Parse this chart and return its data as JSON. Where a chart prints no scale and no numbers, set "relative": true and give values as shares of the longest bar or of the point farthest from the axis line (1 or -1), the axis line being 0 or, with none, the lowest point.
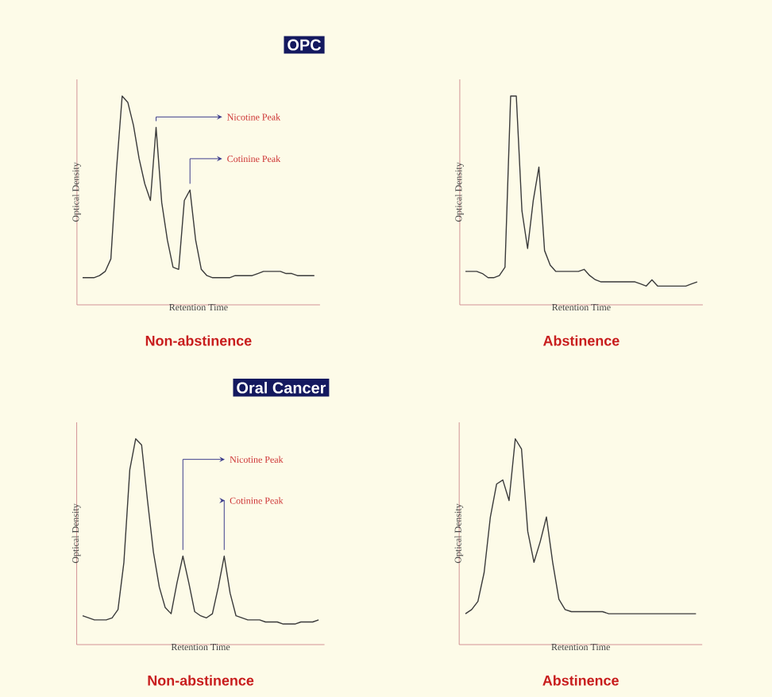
{
  "chart_data": [
    {
      "type": "line",
      "relative": true,
      "title": "OPC",
      "subtitle": "Non-abstinence",
      "xlabel": "Retention Time",
      "ylabel": "Optical Density",
      "color": "#3a3a3a",
      "annotations": [
        "Nicotine Peak",
        "Cotinine Peak"
      ],
      "categories": [
        null,
        null,
        null,
        null,
        null,
        null,
        null,
        null,
        null,
        null,
        null,
        null,
        null,
        null,
        null,
        null,
        null,
        null,
        null,
        null,
        null,
        null,
        null,
        null,
        null,
        null,
        null,
        null,
        null,
        null,
        null,
        null,
        null,
        null,
        null,
        null,
        null,
        null,
        null,
        null,
        null,
        null
      ],
      "values": [
        0.13,
        0.13,
        0.13,
        0.14,
        0.16,
        0.22,
        0.65,
        1.0,
        0.97,
        0.86,
        0.7,
        0.58,
        0.5,
        0.85,
        0.49,
        0.31,
        0.18,
        0.17,
        0.5,
        0.55,
        0.31,
        0.17,
        0.14,
        0.13,
        0.13,
        0.13,
        0.13,
        0.14,
        0.14,
        0.14,
        0.14,
        0.15,
        0.16,
        0.16,
        0.16,
        0.16,
        0.15,
        0.15,
        0.14,
        0.14,
        0.14,
        0.14
      ]
    },
    {
      "type": "line",
      "relative": true,
      "subtitle": "Abstinence",
      "xlabel": "Retention Time",
      "ylabel": "Optical Density",
      "color": "#3a3a3a",
      "categories": [
        null,
        null,
        null,
        null,
        null,
        null,
        null,
        null,
        null,
        null,
        null,
        null,
        null,
        null,
        null,
        null,
        null,
        null,
        null,
        null,
        null,
        null,
        null,
        null,
        null,
        null,
        null,
        null,
        null,
        null,
        null,
        null,
        null,
        null,
        null,
        null,
        null,
        null,
        null,
        null,
        null,
        null
      ],
      "values": [
        0.16,
        0.16,
        0.16,
        0.15,
        0.13,
        0.13,
        0.14,
        0.18,
        1.0,
        1.0,
        0.45,
        0.27,
        0.5,
        0.66,
        0.26,
        0.19,
        0.16,
        0.16,
        0.16,
        0.16,
        0.16,
        0.17,
        0.14,
        0.12,
        0.11,
        0.11,
        0.11,
        0.11,
        0.11,
        0.11,
        0.11,
        0.1,
        0.09,
        0.12,
        0.09,
        0.09,
        0.09,
        0.09,
        0.09,
        0.09,
        0.1,
        0.11
      ]
    },
    {
      "type": "line",
      "relative": true,
      "title": "Oral Cancer",
      "subtitle": "Non-abstinence",
      "xlabel": "Retention Time",
      "ylabel": "Optical Density",
      "color": "#3a3a3a",
      "annotations": [
        "Nicotine Peak",
        "Cotinine Peak"
      ],
      "categories": [
        null,
        null,
        null,
        null,
        null,
        null,
        null,
        null,
        null,
        null,
        null,
        null,
        null,
        null,
        null,
        null,
        null,
        null,
        null,
        null,
        null,
        null,
        null,
        null,
        null,
        null,
        null,
        null,
        null,
        null,
        null,
        null,
        null,
        null,
        null,
        null,
        null,
        null,
        null,
        null,
        null
      ],
      "values": [
        0.14,
        0.13,
        0.12,
        0.12,
        0.12,
        0.13,
        0.17,
        0.4,
        0.85,
        1.0,
        0.97,
        0.7,
        0.45,
        0.28,
        0.18,
        0.15,
        0.3,
        0.43,
        0.3,
        0.16,
        0.14,
        0.13,
        0.15,
        0.28,
        0.43,
        0.25,
        0.14,
        0.13,
        0.12,
        0.12,
        0.12,
        0.11,
        0.11,
        0.11,
        0.1,
        0.1,
        0.1,
        0.11,
        0.11,
        0.11,
        0.12
      ]
    },
    {
      "type": "line",
      "relative": true,
      "subtitle": "Abstinence",
      "xlabel": "Retention Time",
      "ylabel": "Optical Density",
      "color": "#3a3a3a",
      "categories": [
        null,
        null,
        null,
        null,
        null,
        null,
        null,
        null,
        null,
        null,
        null,
        null,
        null,
        null,
        null,
        null,
        null,
        null,
        null,
        null,
        null,
        null,
        null,
        null,
        null,
        null,
        null,
        null,
        null,
        null,
        null,
        null,
        null,
        null,
        null,
        null,
        null,
        null
      ],
      "values": [
        0.15,
        0.17,
        0.21,
        0.35,
        0.62,
        0.78,
        0.8,
        0.7,
        1.0,
        0.95,
        0.55,
        0.4,
        0.5,
        0.62,
        0.4,
        0.22,
        0.17,
        0.16,
        0.16,
        0.16,
        0.16,
        0.16,
        0.16,
        0.15,
        0.15,
        0.15,
        0.15,
        0.15,
        0.15,
        0.15,
        0.15,
        0.15,
        0.15,
        0.15,
        0.15,
        0.15,
        0.15,
        0.15
      ]
    }
  ]
}
